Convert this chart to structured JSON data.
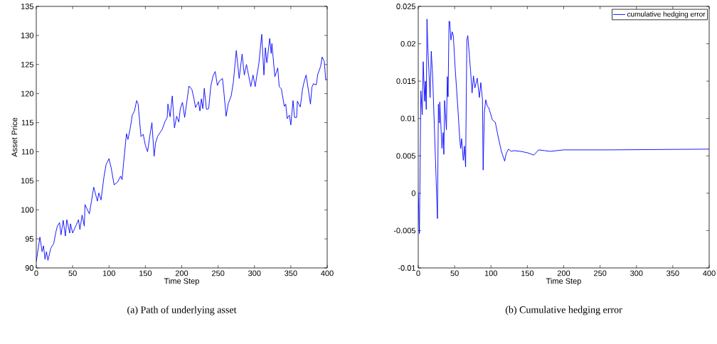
{
  "chart_data": [
    {
      "type": "line",
      "xlabel": "Time Step",
      "ylabel": "Asset Price",
      "annotations": [
        "(a) Path of underlying asset"
      ],
      "xlim": [
        0,
        400
      ],
      "ylim": [
        90,
        135
      ],
      "xticks": [
        0,
        50,
        100,
        150,
        200,
        250,
        300,
        350,
        400
      ],
      "yticks": [
        90,
        95,
        100,
        105,
        110,
        115,
        120,
        125,
        130,
        135
      ],
      "x": [
        0,
        5,
        8,
        10,
        12,
        14,
        16,
        20,
        24,
        27,
        29,
        32,
        34,
        37,
        40,
        42,
        46,
        47,
        50,
        55,
        58,
        60,
        63,
        66,
        67,
        73,
        76,
        79,
        84,
        86,
        89,
        93,
        96,
        100,
        103,
        107,
        112,
        116,
        118,
        120,
        124,
        126,
        129,
        132,
        135,
        138,
        140,
        144,
        147,
        150,
        153,
        156,
        159,
        162,
        164,
        167,
        173,
        177,
        180,
        181,
        184,
        187,
        190,
        193,
        196,
        198,
        201,
        204,
        207,
        210,
        214,
        217,
        219,
        223,
        225,
        227,
        229,
        231,
        234,
        237,
        240,
        243,
        246,
        249,
        252,
        256,
        258,
        261,
        264,
        268,
        271,
        275,
        279,
        283,
        286,
        289,
        292,
        295,
        298,
        301,
        303,
        306,
        310,
        313,
        315,
        317,
        321,
        323,
        324,
        328,
        332,
        334,
        337,
        341,
        343,
        345,
        348,
        350,
        353,
        355,
        358,
        359,
        363,
        366,
        368,
        371,
        374,
        377,
        379,
        381,
        385,
        387,
        391,
        393,
        396,
        398,
        400
      ],
      "series": [
        {
          "color": "#0000ff",
          "values": [
            91.1,
            95.3,
            92.8,
            93.8,
            91.5,
            92.8,
            91.3,
            93.4,
            94.2,
            96.2,
            97.2,
            97.8,
            95.7,
            98.2,
            95.5,
            98.3,
            96.0,
            97.6,
            96.0,
            97.4,
            98.3,
            96.6,
            99.1,
            97.2,
            100.9,
            99.3,
            101.6,
            103.9,
            101.5,
            102.9,
            101.7,
            105.6,
            107.8,
            108.8,
            107.2,
            104.3,
            104.8,
            105.8,
            105.2,
            108.0,
            113.1,
            112.1,
            113.9,
            116.3,
            117.0,
            118.8,
            118.2,
            112.6,
            113.0,
            111.1,
            110.0,
            112.6,
            115.0,
            109.2,
            111.5,
            112.7,
            113.8,
            115.2,
            115.9,
            118.2,
            116.0,
            119.6,
            114.1,
            116.1,
            115.1,
            117.4,
            118.5,
            115.9,
            118.6,
            121.3,
            120.7,
            119.0,
            117.6,
            118.6,
            117.0,
            119.1,
            117.4,
            120.9,
            117.3,
            117.4,
            121.3,
            123.0,
            123.8,
            121.4,
            122.2,
            122.6,
            120.2,
            116.1,
            118.3,
            119.6,
            122.0,
            127.4,
            122.6,
            126.8,
            123.2,
            125.0,
            123.1,
            121.2,
            123.2,
            121.2,
            122.9,
            125.1,
            130.2,
            123.2,
            127.9,
            125.3,
            129.5,
            126.9,
            128.6,
            122.9,
            124.4,
            121.2,
            120.8,
            117.8,
            118.2,
            115.7,
            116.3,
            114.6,
            118.8,
            115.9,
            115.9,
            118.7,
            117.7,
            120.7,
            121.9,
            123.2,
            120.7,
            118.2,
            121.1,
            121.7,
            121.5,
            123.3,
            124.7,
            126.3,
            125.5,
            122.3,
            122.5
          ]
        }
      ]
    },
    {
      "type": "line",
      "xlabel": "Time Step",
      "annotations": [
        "(b) Cumulative hedging error"
      ],
      "legend": "top right",
      "xlim": [
        0,
        400
      ],
      "ylim": [
        -0.01,
        0.025
      ],
      "xticks": [
        0,
        50,
        100,
        150,
        200,
        250,
        300,
        350,
        400
      ],
      "yticks": [
        -0.01,
        -0.005,
        0,
        0.005,
        0.01,
        0.015,
        0.02,
        0.025
      ],
      "x": [
        0,
        1.6,
        3.6,
        5.5,
        6.8,
        8.8,
        10,
        11,
        12,
        13.4,
        16.3,
        17.9,
        19.9,
        26.4,
        27.7,
        29,
        29.6,
        32.6,
        34.2,
        35.2,
        36.2,
        38.7,
        40,
        41,
        42.3,
        43.3,
        44.9,
        46.6,
        48.2,
        50.5,
        54.7,
        57,
        58.3,
        59.6,
        61.9,
        63.5,
        65.1,
        66.8,
        68.1,
        72,
        74,
        75.9,
        77.9,
        81.1,
        84,
        86,
        88.3,
        89.2,
        90.9,
        92.8,
        94.8,
        97,
        102,
        105.9,
        110,
        114.3,
        118.8,
        120.8,
        124,
        128,
        131.3,
        141,
        150.8,
        158.9,
        165.5,
        173.6,
        181.5,
        200,
        266,
        400
      ],
      "series": [
        {
          "name": "cumulative hedging error",
          "color": "#0000ff",
          "values": [
            0.0,
            -0.0054,
            0.0137,
            0.0105,
            0.0176,
            0.0123,
            0.015,
            0.0112,
            0.0233,
            0.019,
            0.0128,
            0.019,
            0.0154,
            -0.0034,
            0.0119,
            0.0094,
            0.0122,
            0.006,
            0.0081,
            0.0052,
            0.0124,
            0.0085,
            0.0156,
            0.0129,
            0.023,
            0.023,
            0.0205,
            0.0216,
            0.0211,
            0.0171,
            0.011,
            0.0073,
            0.006,
            0.0073,
            0.0044,
            0.0063,
            0.0035,
            0.0205,
            0.0211,
            0.0163,
            0.0134,
            0.0157,
            0.0141,
            0.0154,
            0.0128,
            0.0148,
            0.0125,
            0.0031,
            0.0108,
            0.0125,
            0.0117,
            0.0114,
            0.0098,
            0.0095,
            0.0075,
            0.0056,
            0.0043,
            0.0053,
            0.0059,
            0.0056,
            0.0057,
            0.0056,
            0.0054,
            0.0051,
            0.0058,
            0.0057,
            0.0056,
            0.0058,
            0.0058,
            0.0059
          ]
        }
      ]
    }
  ]
}
